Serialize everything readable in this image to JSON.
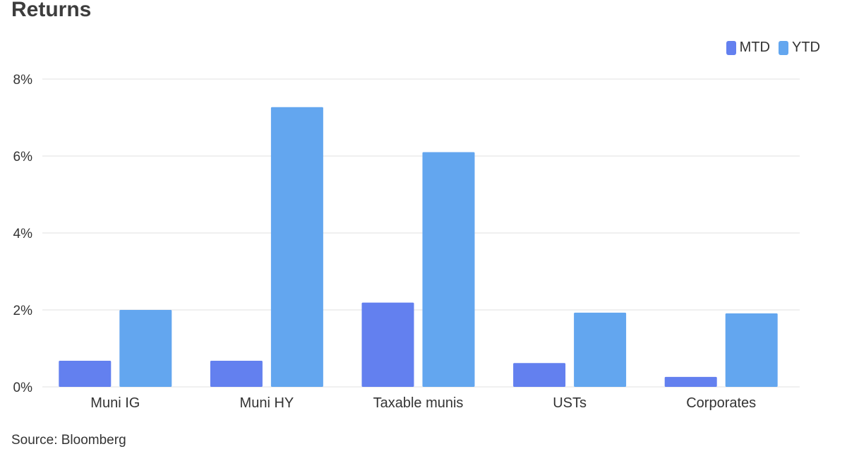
{
  "title": "Returns",
  "source": "Source: Bloomberg",
  "colors": {
    "mtd": "#6380ef",
    "ytd": "#63a6ef",
    "grid": "#ebebeb",
    "axis_text": "#333333"
  },
  "chart_data": {
    "type": "bar",
    "title": "Returns",
    "categories": [
      "Muni IG",
      "Muni HY",
      "Taxable munis",
      "USTs",
      "Corporates"
    ],
    "series": [
      {
        "name": "MTD",
        "values": [
          0.68,
          0.68,
          2.19,
          0.62,
          0.26
        ]
      },
      {
        "name": "YTD",
        "values": [
          2.0,
          7.27,
          6.1,
          1.93,
          1.91
        ]
      }
    ],
    "yticks": [
      "0%",
      "2%",
      "4%",
      "6%",
      "8%"
    ],
    "ytick_values": [
      0,
      2,
      4,
      6,
      8
    ],
    "ylim": [
      0,
      8
    ],
    "xlabel": "",
    "ylabel": "",
    "grid": true,
    "legend_position": "top-right"
  }
}
